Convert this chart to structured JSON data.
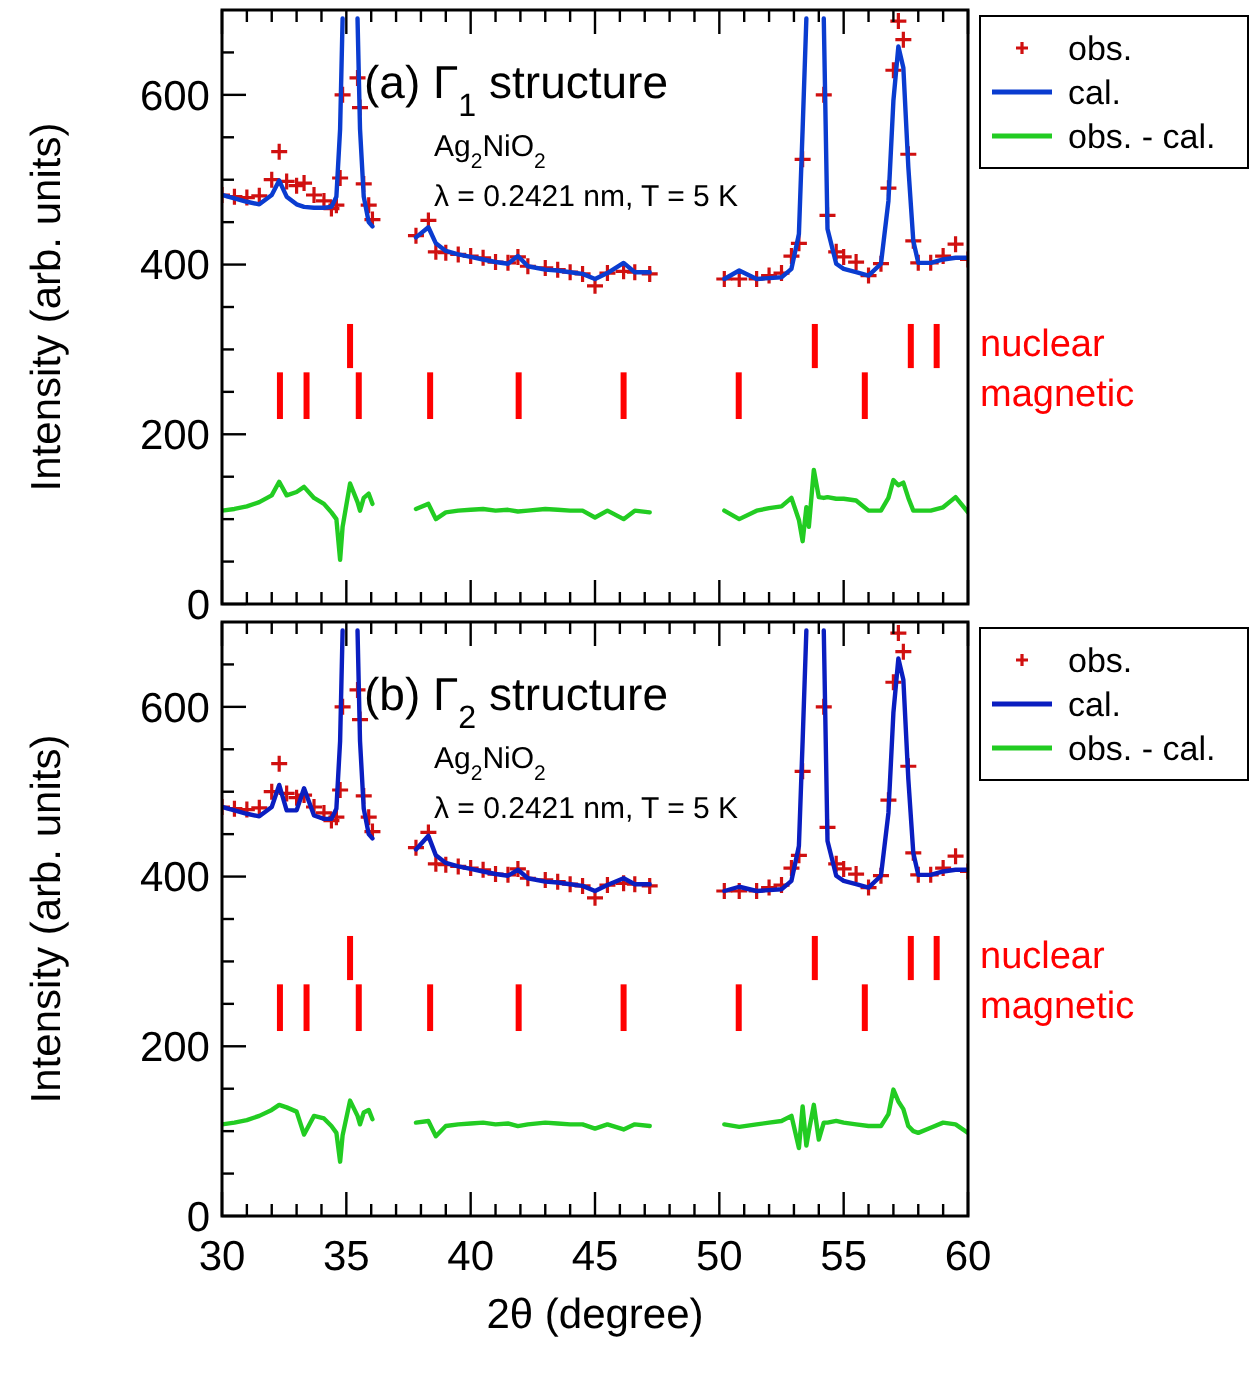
{
  "chart_data": [
    {
      "type": "line",
      "title": "(a) Γ$_{1}$ structure",
      "annotations": [
        "Ag$_{2}$NiO$_{2}$",
        "λ = 0.2421 nm, T = 5 K"
      ],
      "ylabel": "Intensity (arb. units)",
      "legend": "top right",
      "tick_labels": "y",
      "xlim": [
        30,
        60
      ],
      "ylim": [
        0,
        700
      ],
      "xticks": [
        30,
        {
          "value": 31,
          "label": null
        },
        {
          "value": 32,
          "label": null
        },
        {
          "value": 33,
          "label": null
        },
        {
          "value": 34,
          "label": null
        },
        35,
        {
          "value": 36,
          "label": null
        },
        {
          "value": 37,
          "label": null
        },
        {
          "value": 38,
          "label": null
        },
        {
          "value": 39,
          "label": null
        },
        40,
        {
          "value": 41,
          "label": null
        },
        {
          "value": 42,
          "label": null
        },
        {
          "value": 43,
          "label": null
        },
        {
          "value": 44,
          "label": null
        },
        45,
        {
          "value": 46,
          "label": null
        },
        {
          "value": 47,
          "label": null
        },
        {
          "value": 48,
          "label": null
        },
        {
          "value": 49,
          "label": null
        },
        50,
        {
          "value": 51,
          "label": null
        },
        {
          "value": 52,
          "label": null
        },
        {
          "value": 53,
          "label": null
        },
        {
          "value": 54,
          "label": null
        },
        55,
        {
          "value": 56,
          "label": null
        },
        {
          "value": 57,
          "label": null
        },
        {
          "value": 58,
          "label": null
        },
        {
          "value": 59,
          "label": null
        },
        60
      ],
      "yticks": [
        0,
        {
          "value": 50,
          "label": null
        },
        {
          "value": 100,
          "label": null
        },
        {
          "value": 150,
          "label": null
        },
        200,
        {
          "value": 250,
          "label": null
        },
        {
          "value": 300,
          "label": null
        },
        {
          "value": 350,
          "label": null
        },
        400,
        {
          "value": 450,
          "label": null
        },
        {
          "value": 500,
          "label": null
        },
        {
          "value": 550,
          "label": null
        },
        600,
        {
          "value": 650,
          "label": null
        }
      ],
      "x": [
        30,
        30.5,
        31,
        31.5,
        32,
        32.3,
        32.6,
        33,
        33.3,
        33.7,
        34.1,
        34.4,
        34.6,
        34.75,
        34.85,
        35.15,
        35.45,
        35.55,
        35.7,
        35.9,
        36.05,
        37,
        37.8,
        38.3,
        38.6,
        39,
        39.5,
        40,
        40.5,
        41,
        41.5,
        41.9,
        42.3,
        43,
        43.5,
        44,
        44.5,
        45,
        45.5,
        46.15,
        46.6,
        47.2,
        48.5,
        50.2,
        50.8,
        51.5,
        52,
        52.5,
        52.9,
        53.2,
        53.35,
        53.5,
        53.6,
        53.8,
        54.0,
        54.2,
        54.35,
        54.7,
        55,
        55.5,
        56,
        56.5,
        56.8,
        57,
        57.2,
        57.4,
        57.6,
        57.8,
        58,
        58.5,
        59,
        59.5,
        60
      ],
      "series": [
        {
          "name": "obs.",
          "type": "scatter",
          "marker": "cross",
          "color": "#d01010",
          "values": [
            482,
            480,
            479,
            481,
            500,
            533,
            498,
            493,
            496,
            482,
            475,
            466,
            470,
            502,
            600,
            null,
            620,
            585,
            495,
            470,
            453,
            null,
            434,
            452,
            415,
            414,
            412,
            410,
            408,
            403,
            402,
            409,
            398,
            396,
            394,
            391,
            389,
            375,
            390,
            392,
            391,
            389,
            null,
            383,
            383,
            383,
            387,
            390,
            410,
            425,
            524,
            null,
            null,
            null,
            null,
            600,
            458,
            415,
            409,
            403,
            387,
            401,
            490,
            629,
            687,
            665,
            530,
            428,
            402,
            402,
            410,
            424,
            406
          ]
        },
        {
          "name": "cal.",
          "marker": "none",
          "line_style": "solid",
          "color": "#0a3cd0",
          "values": [
            482,
            478,
            474,
            471,
            482,
            499,
            480,
            471,
            468,
            467,
            467,
            468,
            480,
            560,
            690,
            null,
            690,
            560,
            480,
            450,
            445,
            null,
            432,
            444,
            425,
            416,
            412,
            409,
            406,
            403,
            401,
            410,
            398,
            394,
            393,
            391,
            389,
            383,
            390,
            402,
            391,
            391,
            null,
            383,
            393,
            383,
            384,
            385,
            395,
            436,
            560,
            690,
            null,
            null,
            null,
            690,
            442,
            401,
            395,
            391,
            387,
            401,
            475,
            593,
            657,
            632,
            515,
            428,
            402,
            402,
            406,
            408,
            408
          ]
        },
        {
          "name": "obs. - cal.",
          "type": "line",
          "marker": "none",
          "line_style": "solid",
          "color": "#22cc22",
          "values": [
            110,
            112,
            115,
            120,
            128,
            144,
            128,
            132,
            138,
            125,
            118,
            108,
            100,
            52,
            91,
            142,
            120,
            110,
            125,
            130,
            118,
            null,
            112,
            118,
            100,
            108,
            110,
            111,
            112,
            110,
            111,
            109,
            110,
            112,
            111,
            110,
            110,
            102,
            110,
            100,
            110,
            108,
            null,
            110,
            100,
            110,
            113,
            115,
            125,
            99,
            74,
            114,
            91,
            158,
            126,
            125,
            126,
            124,
            124,
            122,
            110,
            110,
            125,
            146,
            140,
            143,
            125,
            110,
            110,
            110,
            114,
            126,
            108
          ]
        },
        {
          "name": "nuclear",
          "type": "bar",
          "color": "#ff0000",
          "x": [
            35.15,
            53.84,
            57.7,
            58.74
          ],
          "base": [
            278,
            278,
            278,
            278
          ],
          "values": [
            52,
            52,
            52,
            52
          ]
        },
        {
          "name": "magnetic",
          "type": "bar",
          "color": "#ff0000",
          "x": [
            32.33,
            33.4,
            35.5,
            38.37,
            41.93,
            46.15,
            50.78,
            55.85
          ],
          "base": [
            218,
            218,
            218,
            218,
            218,
            218,
            218,
            218
          ],
          "values": [
            55,
            55,
            55,
            55,
            55,
            55,
            55,
            55
          ]
        }
      ]
    },
    {
      "type": "line",
      "title": "(b) Γ$_{2}$ structure",
      "annotations": [
        "Ag$_{2}$NiO$_{2}$",
        "λ = 0.2421 nm, T = 5 K"
      ],
      "xlabel": "2θ (degree)",
      "ylabel": "Intensity (arb. units)",
      "legend": "top right",
      "xlim": [
        30,
        60
      ],
      "ylim": [
        0,
        700
      ],
      "xticks": [
        30,
        {
          "value": 31,
          "label": null
        },
        {
          "value": 32,
          "label": null
        },
        {
          "value": 33,
          "label": null
        },
        {
          "value": 34,
          "label": null
        },
        35,
        {
          "value": 36,
          "label": null
        },
        {
          "value": 37,
          "label": null
        },
        {
          "value": 38,
          "label": null
        },
        {
          "value": 39,
          "label": null
        },
        40,
        {
          "value": 41,
          "label": null
        },
        {
          "value": 42,
          "label": null
        },
        {
          "value": 43,
          "label": null
        },
        {
          "value": 44,
          "label": null
        },
        45,
        {
          "value": 46,
          "label": null
        },
        {
          "value": 47,
          "label": null
        },
        {
          "value": 48,
          "label": null
        },
        {
          "value": 49,
          "label": null
        },
        50,
        {
          "value": 51,
          "label": null
        },
        {
          "value": 52,
          "label": null
        },
        {
          "value": 53,
          "label": null
        },
        {
          "value": 54,
          "label": null
        },
        55,
        {
          "value": 56,
          "label": null
        },
        {
          "value": 57,
          "label": null
        },
        {
          "value": 58,
          "label": null
        },
        {
          "value": 59,
          "label": null
        },
        60
      ],
      "yticks": [
        0,
        {
          "value": 50,
          "label": null
        },
        {
          "value": 100,
          "label": null
        },
        {
          "value": 150,
          "label": null
        },
        200,
        {
          "value": 250,
          "label": null
        },
        {
          "value": 300,
          "label": null
        },
        {
          "value": 350,
          "label": null
        },
        400,
        {
          "value": 450,
          "label": null
        },
        {
          "value": 500,
          "label": null
        },
        {
          "value": 550,
          "label": null
        },
        600,
        {
          "value": 650,
          "label": null
        }
      ],
      "x": [
        30,
        30.5,
        31,
        31.5,
        32,
        32.3,
        32.6,
        33,
        33.3,
        33.7,
        34.1,
        34.4,
        34.6,
        34.75,
        34.85,
        35.15,
        35.45,
        35.55,
        35.7,
        35.9,
        36.05,
        37,
        37.8,
        38.3,
        38.6,
        39,
        39.5,
        40,
        40.5,
        41,
        41.5,
        41.9,
        42.3,
        43,
        43.5,
        44,
        44.5,
        45,
        45.5,
        46.15,
        46.6,
        47.2,
        48.5,
        50.2,
        50.8,
        51.5,
        52,
        52.5,
        52.9,
        53.2,
        53.35,
        53.5,
        53.6,
        53.8,
        54.0,
        54.2,
        54.35,
        54.7,
        55,
        55.5,
        56,
        56.5,
        56.8,
        57,
        57.2,
        57.4,
        57.6,
        57.8,
        58,
        58.5,
        59,
        59.5,
        60
      ],
      "series": [
        {
          "name": "obs.",
          "type": "scatter",
          "marker": "cross",
          "color": "#d01010",
          "values": [
            482,
            480,
            479,
            481,
            500,
            533,
            498,
            493,
            496,
            482,
            475,
            466,
            470,
            502,
            600,
            null,
            620,
            585,
            495,
            470,
            453,
            null,
            434,
            452,
            415,
            414,
            412,
            410,
            408,
            403,
            402,
            409,
            398,
            396,
            394,
            391,
            389,
            375,
            390,
            392,
            391,
            389,
            null,
            383,
            383,
            383,
            387,
            390,
            410,
            425,
            524,
            null,
            null,
            null,
            null,
            600,
            458,
            415,
            409,
            403,
            387,
            401,
            490,
            629,
            687,
            665,
            530,
            428,
            402,
            402,
            410,
            424,
            406
          ]
        },
        {
          "name": "cal.",
          "marker": "none",
          "line_style": "solid",
          "color": "#0a1ec0",
          "values": [
            482,
            478,
            474,
            471,
            482,
            508,
            478,
            478,
            504,
            472,
            468,
            468,
            480,
            560,
            690,
            null,
            690,
            560,
            480,
            450,
            445,
            null,
            432,
            448,
            425,
            416,
            412,
            409,
            406,
            403,
            401,
            408,
            398,
            394,
            393,
            391,
            389,
            383,
            390,
            398,
            391,
            391,
            null,
            383,
            388,
            383,
            384,
            385,
            395,
            436,
            560,
            690,
            null,
            null,
            null,
            690,
            442,
            401,
            395,
            391,
            387,
            401,
            475,
            593,
            657,
            632,
            515,
            428,
            402,
            402,
            406,
            408,
            408
          ]
        },
        {
          "name": "obs. - cal.",
          "type": "line",
          "marker": "none",
          "line_style": "solid",
          "color": "#22cc22",
          "values": [
            108,
            110,
            113,
            118,
            125,
            131,
            128,
            123,
            96,
            118,
            115,
            106,
            98,
            64,
            95,
            136,
            118,
            108,
            122,
            125,
            114,
            null,
            110,
            112,
            94,
            106,
            108,
            109,
            110,
            108,
            109,
            106,
            108,
            110,
            109,
            108,
            108,
            103,
            108,
            102,
            108,
            106,
            null,
            108,
            105,
            108,
            110,
            112,
            118,
            80,
            129,
            83,
            100,
            131,
            90,
            110,
            110,
            112,
            110,
            108,
            106,
            106,
            120,
            149,
            135,
            126,
            106,
            100,
            98,
            104,
            110,
            108,
            98
          ]
        },
        {
          "name": "nuclear",
          "type": "bar",
          "color": "#ff0000",
          "x": [
            35.15,
            53.84,
            57.7,
            58.74
          ],
          "base": [
            278,
            278,
            278,
            278
          ],
          "values": [
            52,
            52,
            52,
            52
          ]
        },
        {
          "name": "magnetic",
          "type": "bar",
          "color": "#ff0000",
          "x": [
            32.33,
            33.4,
            35.5,
            38.37,
            41.93,
            46.15,
            50.78,
            55.85
          ],
          "base": [
            218,
            218,
            218,
            218,
            218,
            218,
            218,
            218
          ],
          "values": [
            55,
            55,
            55,
            55,
            55,
            55,
            55,
            55
          ]
        }
      ]
    }
  ]
}
